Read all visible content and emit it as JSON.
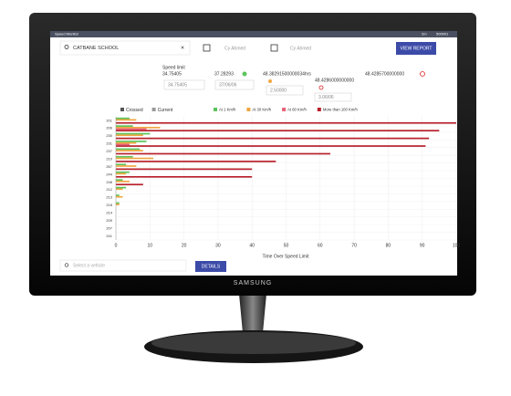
{
  "header": {
    "title": "Speed Monitor",
    "user": "2m",
    "id": "500001"
  },
  "filters": {
    "search": "CATBANE SCHOOL",
    "clear": "×",
    "date_from": "Cy Ahmed",
    "date_to": "Cy Ahmed",
    "button": "VIEW REPORT"
  },
  "stats": {
    "label": "Speed limit",
    "value_1": "34.75405",
    "value_2": "37.28293",
    "value_3": "48.38291500000034hrs",
    "value_4": "48.4285700000000",
    "input_1": "34.75405",
    "input_2": "37/06/06",
    "input_3": "2.50000",
    "input_4": "3.06/06",
    "value_5": "48.4286000000000"
  },
  "chart_data": {
    "type": "bar",
    "orientation": "horizontal",
    "toggles": [
      {
        "name": "Crossed",
        "color": "#555555"
      },
      {
        "name": "Current",
        "color": "#999999"
      }
    ],
    "categories": [
      "201",
      "206",
      "230",
      "231",
      "237",
      "210",
      "267",
      "244",
      "248",
      "212",
      "213",
      "218",
      "214",
      "209",
      "207",
      "241"
    ],
    "series": [
      {
        "name": "At 1 Km/h",
        "color": "#5cc45c",
        "values": [
          4,
          5,
          10,
          9,
          7,
          5,
          3,
          4,
          2,
          3,
          1,
          1,
          0,
          0,
          0,
          0
        ]
      },
      {
        "name": "At 30 Km/h",
        "color": "#f0a640",
        "values": [
          6,
          13,
          8,
          6,
          8,
          11,
          6,
          3,
          4,
          2,
          2,
          1,
          0,
          0,
          0,
          0
        ]
      },
      {
        "name": "At 60 Km/h",
        "color": "#e8627a",
        "values": [
          0,
          9,
          0,
          4,
          0,
          0,
          0,
          0,
          0,
          0,
          0,
          0,
          0,
          0,
          0,
          0
        ]
      },
      {
        "name": "More than 100 Km/h",
        "color": "#b8202a",
        "values": [
          100,
          95,
          92,
          91,
          63,
          47,
          40,
          40,
          8,
          0,
          0,
          0,
          0,
          0,
          0,
          0
        ]
      }
    ],
    "x_label": "Time Over Speed Limit",
    "xlim": [
      0,
      100
    ],
    "xticks": [
      0,
      10,
      20,
      30,
      40,
      50,
      60,
      70,
      80,
      90,
      100
    ],
    "grid": true
  },
  "footer": {
    "search": "Select a vehicle",
    "button": "DETAILS"
  },
  "monitor": {
    "brand": "SAMSUNG"
  }
}
